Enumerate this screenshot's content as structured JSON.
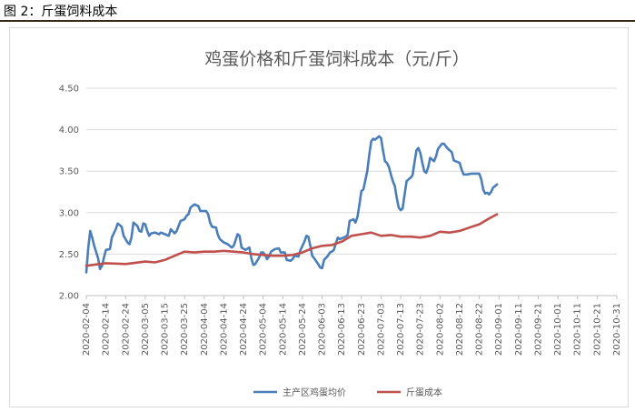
{
  "figure": {
    "caption": "图 2：斤蛋饲料成本"
  },
  "chart_data": {
    "type": "line",
    "title": "鸡蛋价格和斤蛋饲料成本（元/斤）",
    "xlabel": "",
    "ylabel": "",
    "ylim": [
      2.0,
      4.5
    ],
    "yticks": [
      "2.00",
      "2.50",
      "3.00",
      "3.50",
      "4.00",
      "4.50"
    ],
    "xlim": [
      "2020-02-04",
      "2020-10-31"
    ],
    "xticks": [
      "2020-02-04",
      "2020-02-14",
      "2020-02-24",
      "2020-03-05",
      "2020-03-15",
      "2020-03-25",
      "2020-04-04",
      "2020-04-14",
      "2020-04-24",
      "2020-05-04",
      "2020-05-14",
      "2020-05-24",
      "2020-06-03",
      "2020-06-13",
      "2020-06-23",
      "2020-07-03",
      "2020-07-13",
      "2020-07-23",
      "2020-08-02",
      "2020-08-12",
      "2020-08-22",
      "2020-09-01",
      "2020-09-11",
      "2020-09-21",
      "2020-10-01",
      "2020-10-11",
      "2020-10-21",
      "2020-10-31"
    ],
    "grid": "horizontal",
    "legend": "bottom",
    "series": [
      {
        "name": "主产区鸡蛋均价",
        "color": "#4a7ebb",
        "points": [
          [
            "2020-02-04",
            2.28
          ],
          [
            "2020-02-05",
            2.58
          ],
          [
            "2020-02-06",
            2.78
          ],
          [
            "2020-02-07",
            2.7
          ],
          [
            "2020-02-08",
            2.6
          ],
          [
            "2020-02-10",
            2.45
          ],
          [
            "2020-02-11",
            2.32
          ],
          [
            "2020-02-12",
            2.36
          ],
          [
            "2020-02-13",
            2.46
          ],
          [
            "2020-02-14",
            2.55
          ],
          [
            "2020-02-16",
            2.56
          ],
          [
            "2020-02-17",
            2.7
          ],
          [
            "2020-02-19",
            2.8
          ],
          [
            "2020-02-20",
            2.87
          ],
          [
            "2020-02-22",
            2.83
          ],
          [
            "2020-02-23",
            2.72
          ],
          [
            "2020-02-25",
            2.64
          ],
          [
            "2020-02-26",
            2.62
          ],
          [
            "2020-02-27",
            2.7
          ],
          [
            "2020-02-28",
            2.88
          ],
          [
            "2020-03-01",
            2.84
          ],
          [
            "2020-03-02",
            2.78
          ],
          [
            "2020-03-03",
            2.77
          ],
          [
            "2020-03-04",
            2.87
          ],
          [
            "2020-03-05",
            2.86
          ],
          [
            "2020-03-06",
            2.78
          ],
          [
            "2020-03-07",
            2.72
          ],
          [
            "2020-03-08",
            2.75
          ],
          [
            "2020-03-10",
            2.76
          ],
          [
            "2020-03-12",
            2.74
          ],
          [
            "2020-03-13",
            2.76
          ],
          [
            "2020-03-15",
            2.74
          ],
          [
            "2020-03-17",
            2.72
          ],
          [
            "2020-03-18",
            2.8
          ],
          [
            "2020-03-20",
            2.75
          ],
          [
            "2020-03-21",
            2.78
          ],
          [
            "2020-03-23",
            2.9
          ],
          [
            "2020-03-25",
            2.92
          ],
          [
            "2020-03-26",
            2.96
          ],
          [
            "2020-03-27",
            2.98
          ],
          [
            "2020-03-28",
            3.06
          ],
          [
            "2020-03-30",
            3.1
          ],
          [
            "2020-04-01",
            3.08
          ],
          [
            "2020-04-02",
            3.02
          ],
          [
            "2020-04-05",
            3.02
          ],
          [
            "2020-04-06",
            2.98
          ],
          [
            "2020-04-07",
            2.88
          ],
          [
            "2020-04-08",
            2.83
          ],
          [
            "2020-04-10",
            2.82
          ],
          [
            "2020-04-11",
            2.73
          ],
          [
            "2020-04-12",
            2.68
          ],
          [
            "2020-04-14",
            2.64
          ],
          [
            "2020-04-16",
            2.62
          ],
          [
            "2020-04-18",
            2.58
          ],
          [
            "2020-04-19",
            2.6
          ],
          [
            "2020-04-20",
            2.67
          ],
          [
            "2020-04-21",
            2.74
          ],
          [
            "2020-04-22",
            2.72
          ],
          [
            "2020-04-23",
            2.58
          ],
          [
            "2020-04-25",
            2.55
          ],
          [
            "2020-04-27",
            2.58
          ],
          [
            "2020-04-28",
            2.45
          ],
          [
            "2020-04-29",
            2.37
          ],
          [
            "2020-04-30",
            2.38
          ],
          [
            "2020-05-02",
            2.46
          ],
          [
            "2020-05-03",
            2.52
          ],
          [
            "2020-05-04",
            2.52
          ],
          [
            "2020-05-05",
            2.49
          ],
          [
            "2020-05-06",
            2.44
          ],
          [
            "2020-05-07",
            2.47
          ],
          [
            "2020-05-08",
            2.53
          ],
          [
            "2020-05-10",
            2.56
          ],
          [
            "2020-05-12",
            2.57
          ],
          [
            "2020-05-13",
            2.52
          ],
          [
            "2020-05-15",
            2.52
          ],
          [
            "2020-05-16",
            2.43
          ],
          [
            "2020-05-18",
            2.42
          ],
          [
            "2020-05-19",
            2.44
          ],
          [
            "2020-05-20",
            2.48
          ],
          [
            "2020-05-22",
            2.47
          ],
          [
            "2020-05-23",
            2.55
          ],
          [
            "2020-05-25",
            2.65
          ],
          [
            "2020-05-26",
            2.72
          ],
          [
            "2020-05-27",
            2.71
          ],
          [
            "2020-05-28",
            2.6
          ],
          [
            "2020-05-29",
            2.48
          ],
          [
            "2020-05-30",
            2.45
          ],
          [
            "2020-06-01",
            2.38
          ],
          [
            "2020-06-02",
            2.34
          ],
          [
            "2020-06-03",
            2.33
          ],
          [
            "2020-06-04",
            2.43
          ],
          [
            "2020-06-06",
            2.48
          ],
          [
            "2020-06-07",
            2.52
          ],
          [
            "2020-06-08",
            2.53
          ],
          [
            "2020-06-09",
            2.55
          ],
          [
            "2020-06-10",
            2.63
          ],
          [
            "2020-06-11",
            2.7
          ],
          [
            "2020-06-12",
            2.68
          ],
          [
            "2020-06-14",
            2.7
          ],
          [
            "2020-06-15",
            2.71
          ],
          [
            "2020-06-16",
            2.73
          ],
          [
            "2020-06-17",
            2.9
          ],
          [
            "2020-06-19",
            2.92
          ],
          [
            "2020-06-20",
            2.88
          ],
          [
            "2020-06-21",
            2.95
          ],
          [
            "2020-06-22",
            3.1
          ],
          [
            "2020-06-23",
            3.26
          ],
          [
            "2020-06-24",
            3.28
          ],
          [
            "2020-06-26",
            3.5
          ],
          [
            "2020-06-27",
            3.7
          ],
          [
            "2020-06-28",
            3.86
          ],
          [
            "2020-06-29",
            3.89
          ],
          [
            "2020-06-30",
            3.88
          ],
          [
            "2020-07-01",
            3.9
          ],
          [
            "2020-07-02",
            3.92
          ],
          [
            "2020-07-03",
            3.9
          ],
          [
            "2020-07-04",
            3.75
          ],
          [
            "2020-07-05",
            3.62
          ],
          [
            "2020-07-06",
            3.6
          ],
          [
            "2020-07-07",
            3.55
          ],
          [
            "2020-07-08",
            3.46
          ],
          [
            "2020-07-09",
            3.38
          ],
          [
            "2020-07-10",
            3.32
          ],
          [
            "2020-07-11",
            3.18
          ],
          [
            "2020-07-12",
            3.06
          ],
          [
            "2020-07-13",
            3.03
          ],
          [
            "2020-07-14",
            3.05
          ],
          [
            "2020-07-15",
            3.22
          ],
          [
            "2020-07-16",
            3.38
          ],
          [
            "2020-07-17",
            3.4
          ],
          [
            "2020-07-18",
            3.42
          ],
          [
            "2020-07-19",
            3.45
          ],
          [
            "2020-07-20",
            3.6
          ],
          [
            "2020-07-21",
            3.75
          ],
          [
            "2020-07-22",
            3.78
          ],
          [
            "2020-07-23",
            3.72
          ],
          [
            "2020-07-24",
            3.6
          ],
          [
            "2020-07-25",
            3.5
          ],
          [
            "2020-07-26",
            3.48
          ],
          [
            "2020-07-27",
            3.55
          ],
          [
            "2020-07-28",
            3.66
          ],
          [
            "2020-07-29",
            3.64
          ],
          [
            "2020-07-30",
            3.62
          ],
          [
            "2020-07-31",
            3.68
          ],
          [
            "2020-08-01",
            3.77
          ],
          [
            "2020-08-02",
            3.8
          ],
          [
            "2020-08-03",
            3.83
          ],
          [
            "2020-08-04",
            3.83
          ],
          [
            "2020-08-05",
            3.8
          ],
          [
            "2020-08-06",
            3.77
          ],
          [
            "2020-08-07",
            3.75
          ],
          [
            "2020-08-08",
            3.73
          ],
          [
            "2020-08-09",
            3.63
          ],
          [
            "2020-08-10",
            3.62
          ],
          [
            "2020-08-11",
            3.61
          ],
          [
            "2020-08-12",
            3.6
          ],
          [
            "2020-08-13",
            3.52
          ],
          [
            "2020-08-14",
            3.46
          ],
          [
            "2020-08-16",
            3.46
          ],
          [
            "2020-08-18",
            3.47
          ],
          [
            "2020-08-20",
            3.47
          ],
          [
            "2020-08-22",
            3.47
          ],
          [
            "2020-08-23",
            3.4
          ],
          [
            "2020-08-24",
            3.28
          ],
          [
            "2020-08-25",
            3.23
          ],
          [
            "2020-08-26",
            3.24
          ],
          [
            "2020-08-27",
            3.22
          ],
          [
            "2020-08-28",
            3.25
          ],
          [
            "2020-08-29",
            3.3
          ],
          [
            "2020-08-30",
            3.32
          ],
          [
            "2020-08-31",
            3.34
          ]
        ]
      },
      {
        "name": "斤蛋成本",
        "color": "#c0504d",
        "points": [
          [
            "2020-02-04",
            2.36
          ],
          [
            "2020-02-14",
            2.39
          ],
          [
            "2020-02-24",
            2.38
          ],
          [
            "2020-03-05",
            2.41
          ],
          [
            "2020-03-10",
            2.4
          ],
          [
            "2020-03-15",
            2.43
          ],
          [
            "2020-03-20",
            2.48
          ],
          [
            "2020-03-25",
            2.53
          ],
          [
            "2020-03-30",
            2.52
          ],
          [
            "2020-04-04",
            2.53
          ],
          [
            "2020-04-09",
            2.53
          ],
          [
            "2020-04-14",
            2.54
          ],
          [
            "2020-04-19",
            2.53
          ],
          [
            "2020-04-24",
            2.52
          ],
          [
            "2020-04-29",
            2.5
          ],
          [
            "2020-05-04",
            2.49
          ],
          [
            "2020-05-09",
            2.48
          ],
          [
            "2020-05-14",
            2.48
          ],
          [
            "2020-05-19",
            2.49
          ],
          [
            "2020-05-24",
            2.52
          ],
          [
            "2020-05-29",
            2.57
          ],
          [
            "2020-06-03",
            2.6
          ],
          [
            "2020-06-08",
            2.61
          ],
          [
            "2020-06-13",
            2.65
          ],
          [
            "2020-06-18",
            2.72
          ],
          [
            "2020-06-23",
            2.74
          ],
          [
            "2020-06-28",
            2.76
          ],
          [
            "2020-07-03",
            2.72
          ],
          [
            "2020-07-08",
            2.73
          ],
          [
            "2020-07-13",
            2.71
          ],
          [
            "2020-07-18",
            2.71
          ],
          [
            "2020-07-23",
            2.7
          ],
          [
            "2020-07-28",
            2.72
          ],
          [
            "2020-08-02",
            2.77
          ],
          [
            "2020-08-07",
            2.76
          ],
          [
            "2020-08-12",
            2.78
          ],
          [
            "2020-08-17",
            2.82
          ],
          [
            "2020-08-22",
            2.86
          ],
          [
            "2020-08-27",
            2.93
          ],
          [
            "2020-08-31",
            2.98
          ]
        ]
      }
    ]
  }
}
